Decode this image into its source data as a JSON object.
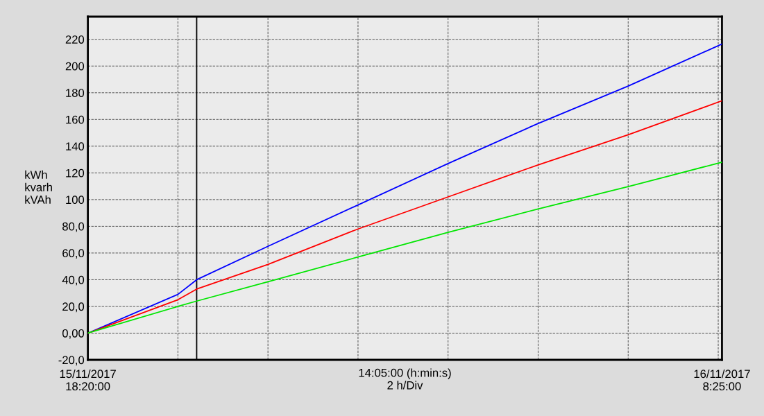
{
  "chart_data": {
    "type": "line",
    "ylabel": "kWh\nkvarh\nkVAh",
    "xlabel": "14:05:00 (h:min:s)\n2 h/Div",
    "x": [
      "2017-11-15T18:20",
      "2017-11-15T20:20",
      "2017-11-15T20:45",
      "2017-11-15T22:20",
      "2017-11-16T00:20",
      "2017-11-16T02:20",
      "2017-11-16T04:20",
      "2017-11-16T06:20",
      "2017-11-16T08:25"
    ],
    "series": [
      {
        "color": "#0000ff",
        "values": [
          0,
          29,
          40,
          65,
          96,
          127,
          157,
          185,
          216.5
        ]
      },
      {
        "color": "#ff0000",
        "values": [
          0,
          25,
          33,
          51.5,
          78,
          102,
          126,
          148.5,
          174
        ]
      },
      {
        "color": "#00e600",
        "values": [
          0,
          20,
          24,
          38.5,
          57,
          75.5,
          93,
          109.7,
          128
        ]
      }
    ],
    "xlim": [
      "2017-11-15T18:20",
      "2017-11-16T08:25"
    ],
    "ylim": [
      -20,
      237
    ],
    "xticks": [
      {
        "value": "2017-11-15T18:20",
        "label": "15/11/2017\n18:20:00"
      },
      {
        "value": "2017-11-15T20:20",
        "label": null
      },
      {
        "value": "2017-11-15T22:20",
        "label": null
      },
      {
        "value": "2017-11-16T00:20",
        "label": null
      },
      {
        "value": "2017-11-16T02:20",
        "label": null
      },
      {
        "value": "2017-11-16T04:20",
        "label": null
      },
      {
        "value": "2017-11-16T06:20",
        "label": null
      },
      {
        "value": "2017-11-16T08:20",
        "label": null
      },
      {
        "value": "2017-11-16T08:25",
        "label": "16/11/2017\n8:25:00"
      }
    ],
    "yticks": [
      {
        "value": -20,
        "label": "-20,0"
      },
      {
        "value": 0,
        "label": "0,00"
      },
      {
        "value": 20,
        "label": "20,0"
      },
      {
        "value": 40,
        "label": "40,0"
      },
      {
        "value": 60,
        "label": "60,0"
      },
      {
        "value": 80,
        "label": "80,0"
      },
      100,
      120,
      140,
      160,
      180,
      200,
      220
    ],
    "ref_lines": [
      {
        "axis": "x",
        "value": "2017-11-15T20:45",
        "color": "#000000",
        "line_style": "solid"
      }
    ],
    "grid": true,
    "line_style": "solid",
    "marker": "none"
  }
}
